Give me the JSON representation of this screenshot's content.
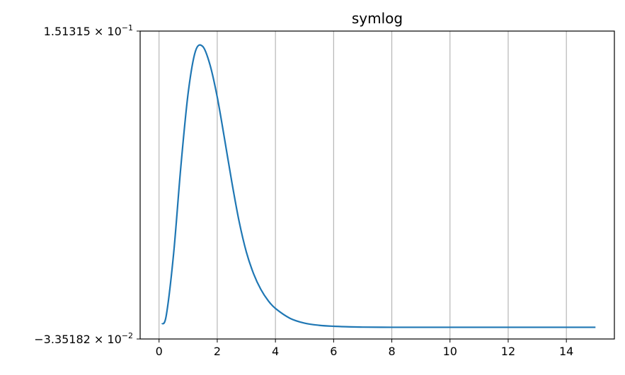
{
  "chart_data": {
    "type": "line",
    "title": "symlog",
    "xlabel": "",
    "ylabel": "",
    "yscale": "symlog",
    "grid": "vertical",
    "xlim": [
      -0.65,
      15.65
    ],
    "ylim": [
      -0.0335182,
      0.151315
    ],
    "xticks": [
      {
        "value": 0,
        "label": "0"
      },
      {
        "value": 2,
        "label": "2"
      },
      {
        "value": 4,
        "label": "4"
      },
      {
        "value": 6,
        "label": "6"
      },
      {
        "value": 8,
        "label": "8"
      },
      {
        "value": 10,
        "label": "10"
      },
      {
        "value": 12,
        "label": "12"
      },
      {
        "value": 14,
        "label": "14"
      }
    ],
    "yticks": [
      {
        "value": -0.0335182,
        "label": "−3.35182 × 10",
        "exponent": "−2"
      },
      {
        "value": 0.151315,
        "label": "1.51315 × 10",
        "exponent": "−1"
      }
    ],
    "series": [
      {
        "color": "#1f77b4",
        "x": [
          0.1,
          0.25,
          0.5,
          0.75,
          1.0,
          1.25,
          1.5,
          1.75,
          2.0,
          2.25,
          2.5,
          2.75,
          3.0,
          3.25,
          3.5,
          3.75,
          4.0,
          4.5,
          5.0,
          5.5,
          6.0,
          6.5,
          7.0,
          8.0,
          9.0,
          10.0,
          11.0,
          12.0,
          13.0,
          14.0,
          15.0
        ],
        "y": [
          -0.0246,
          -0.0192,
          0.0177,
          0.0702,
          0.1141,
          0.1392,
          0.1421,
          0.1311,
          0.1117,
          0.0867,
          0.0608,
          0.0372,
          0.0187,
          0.0056,
          -0.0038,
          -0.0105,
          -0.0152,
          -0.0211,
          -0.024,
          -0.0253,
          -0.0259,
          -0.0262,
          -0.0264,
          -0.0265,
          -0.0265,
          -0.0265,
          -0.0265,
          -0.0265,
          -0.0265,
          -0.0265,
          -0.0265
        ]
      }
    ]
  }
}
